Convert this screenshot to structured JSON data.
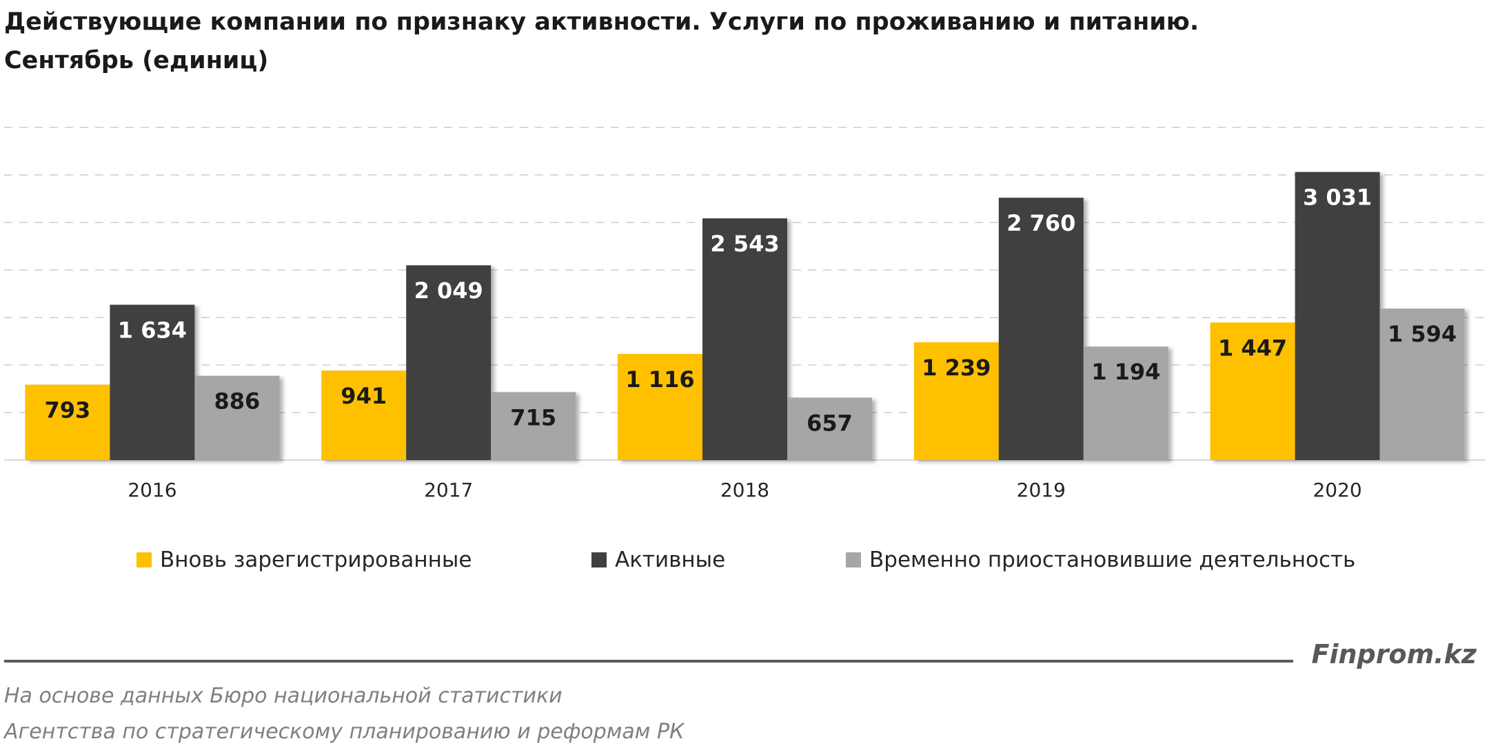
{
  "header": {
    "title_line1": "Действующие компании по признаку активности. Услуги по проживанию и питанию.",
    "title_line2": "Сентябрь (единиц)"
  },
  "chart_data": {
    "type": "bar",
    "title": "Действующие компании по признаку активности. Услуги по проживанию и питанию. Сентябрь (единиц)",
    "categories": [
      "2016",
      "2017",
      "2018",
      "2019",
      "2020"
    ],
    "series": [
      {
        "name": "Вновь зарегистрированные",
        "color": "#FFC000",
        "label_color": "#1a1a1a",
        "values": [
          793,
          941,
          1116,
          1239,
          1447
        ],
        "labels": [
          "793",
          "941",
          "1 116",
          "1 239",
          "1 447"
        ]
      },
      {
        "name": "Активные",
        "color": "#404040",
        "label_color": "#ffffff",
        "values": [
          1634,
          2049,
          2543,
          2760,
          3031
        ],
        "labels": [
          "1 634",
          "2 049",
          "2 543",
          "2 760",
          "3 031"
        ]
      },
      {
        "name": "Временно приостановившие деятельность",
        "color": "#A6A6A6",
        "label_color": "#1a1a1a",
        "values": [
          886,
          715,
          657,
          1194,
          1594
        ],
        "labels": [
          "886",
          "715",
          "657",
          "1 194",
          "1 594"
        ]
      }
    ],
    "ylim": [
      0,
      3500
    ],
    "grid": true,
    "legend": "bottom",
    "xlabel": "",
    "ylabel": ""
  },
  "legend": {
    "items": [
      {
        "label": "Вновь зарегистрированные",
        "color": "#FFC000"
      },
      {
        "label": "Активные",
        "color": "#404040"
      },
      {
        "label": "Временно приостановившие деятельность",
        "color": "#A6A6A6"
      }
    ]
  },
  "footer": {
    "brand": "Finprom.kz",
    "source_line1": "На основе данных Бюро национальной статистики",
    "source_line2": "Агентства по стратегическому планированию и реформам РК"
  }
}
